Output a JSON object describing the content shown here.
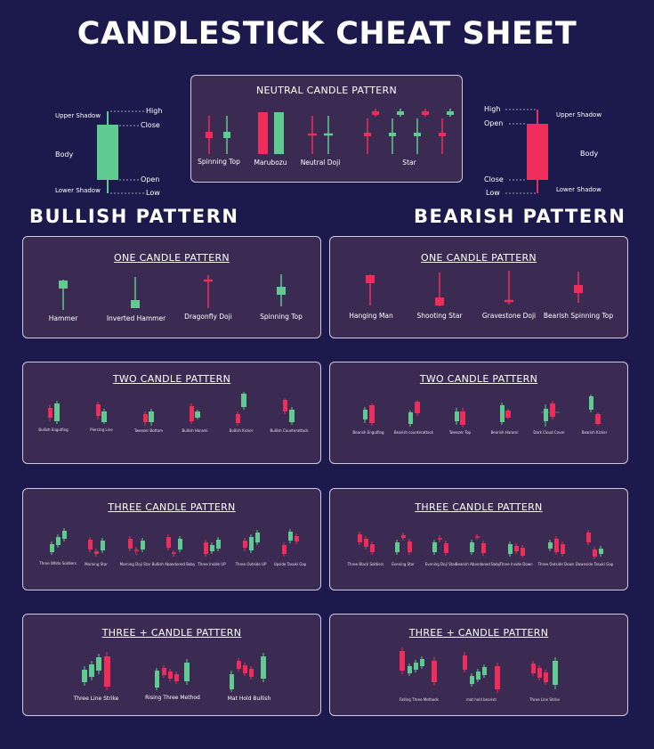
{
  "title": "CANDLESTICK CHEAT SHEET",
  "colors": {
    "bullish": "#5fcb90",
    "bearish": "#ee2d5b",
    "background": "#1c1a4c",
    "panel": "#3b2a52"
  },
  "anatomy_bull": {
    "upper_shadow": "Upper Shadow",
    "body": "Body",
    "lower_shadow": "Lower Shadow",
    "high": "High",
    "close": "Close",
    "open": "Open",
    "low": "Low"
  },
  "anatomy_bear": {
    "upper_shadow": "Upper Shadow",
    "body": "Body",
    "lower_shadow": "Lower Shadow",
    "high": "High",
    "open": "Open",
    "close": "Close",
    "low": "Low"
  },
  "neutral": {
    "title": "NEUTRAL CANDLE PATTERN",
    "patterns": [
      "Spinning Top",
      "Marubozu",
      "Neutral Doji",
      "Star"
    ]
  },
  "bullish_heading": "BULLISH PATTERN",
  "bearish_heading": "BEARISH PATTERN",
  "bullish": {
    "one": {
      "title": "ONE CANDLE PATTERN",
      "patterns": [
        "Hammer",
        "Inverted Hammer",
        "Dragonfly Doji",
        "Spinning Top"
      ]
    },
    "two": {
      "title": "TWO CANDLE PATTERN",
      "patterns": [
        "Bullish Engulfing",
        "Piercing Line",
        "Tweezer Bottom",
        "Bullish Harami",
        "Bullish Kicker",
        "Bullish Counterattack"
      ]
    },
    "three": {
      "title": "THREE  CANDLE PATTERN",
      "patterns": [
        "Three White Soldiers",
        "Morning Star",
        "Morning Doji Star",
        "Bullish Abandoned Baby",
        "Three Inside UP",
        "Three Outside UP",
        "Upside Tasuki Gap"
      ]
    },
    "plus": {
      "title": "THREE + CANDLE PATTERN",
      "patterns": [
        "Three Line Strike",
        "Rising Three Method",
        "Mat Hold Bullish"
      ]
    }
  },
  "bearish": {
    "one": {
      "title": "ONE CANDLE PATTERN",
      "patterns": [
        "Hanging Man",
        "Shooting Star",
        "Gravestone Doji",
        "Bearish Spinning Top"
      ]
    },
    "two": {
      "title": "TWO CANDLE PATTERN",
      "patterns": [
        "Bearish Engulfing",
        "Bearish counterattack",
        "Tweezer Top",
        "Bearish Harami",
        "Dark Cloud Cover",
        "Bearish Kicker"
      ]
    },
    "three": {
      "title": "THREE  CANDLE PATTERN",
      "patterns": [
        "Three Black Soldiers",
        "Evening Star",
        "Evening Doji Star",
        "Bearish Abandoned Baby",
        "Three Inside Down",
        "Three Outside Down",
        "Downside Tasuki Gap"
      ]
    },
    "plus": {
      "title": "THREE + CANDLE PATTERN",
      "patterns": [
        "Falling Three Methods",
        "mat hold bearish",
        "Three Line Strike"
      ]
    }
  }
}
